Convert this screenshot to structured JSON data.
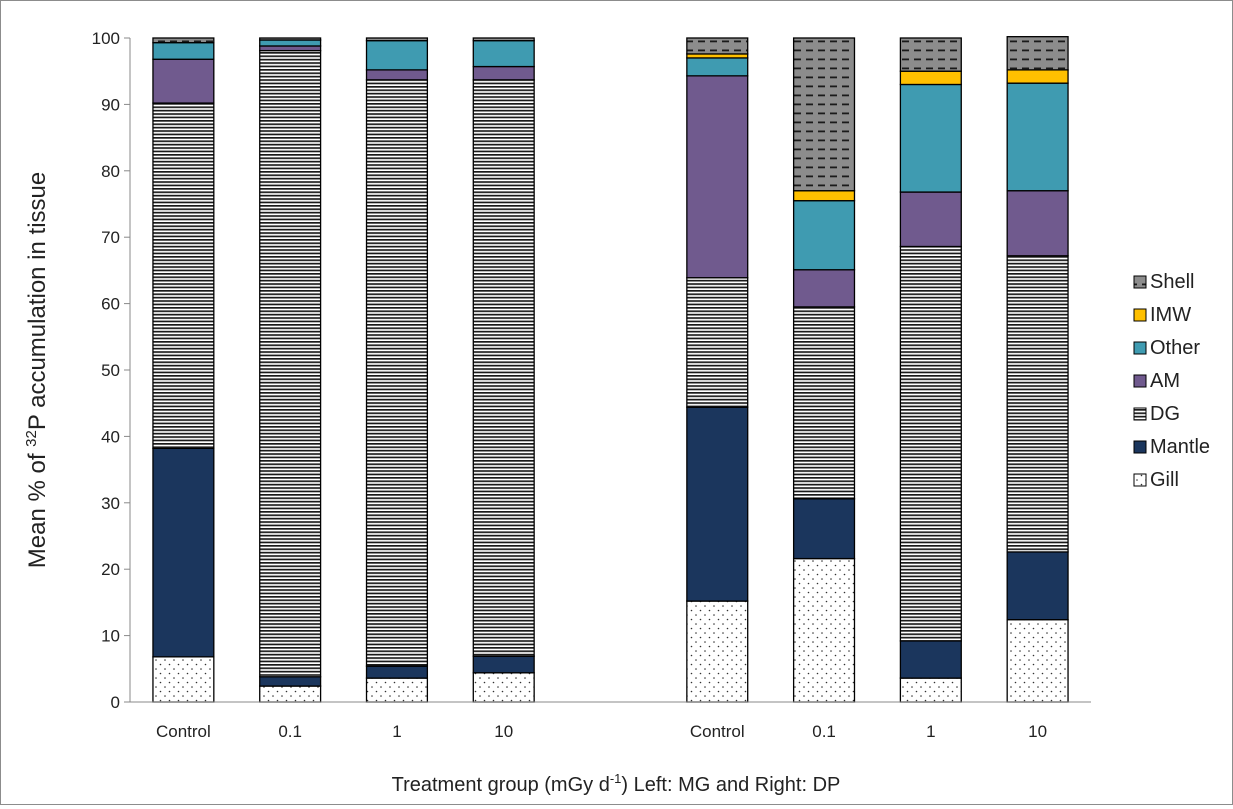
{
  "chart_data": {
    "type": "bar",
    "stacked": true,
    "xlabel_prefix": "Treatment group (mGy d",
    "xlabel_sup": "-1",
    "xlabel_suffix": ") Left: MG and Right: DP",
    "ylabel_prefix": "Mean % of ",
    "ylabel_sup": "32",
    "ylabel_suffix": "P accumulation in tissue",
    "ylim": [
      0,
      100
    ],
    "yticks": [
      0,
      10,
      20,
      30,
      40,
      50,
      60,
      70,
      80,
      90,
      100
    ],
    "grid": false,
    "legend_position": "right",
    "groups": [
      {
        "categories": [
          "Control",
          "0.1",
          "1",
          "10"
        ],
        "series": [
          {
            "name": "Gill",
            "values": [
              6.8,
              2.4,
              3.6,
              4.4
            ]
          },
          {
            "name": "Mantle",
            "values": [
              31.4,
              1.4,
              1.8,
              2.5
            ]
          },
          {
            "name": "DG",
            "values": [
              52.0,
              94.3,
              88.3,
              86.8
            ]
          },
          {
            "name": "AM",
            "values": [
              6.6,
              0.7,
              1.5,
              2.0
            ]
          },
          {
            "name": "Other",
            "values": [
              2.5,
              0.9,
              4.4,
              3.9
            ]
          },
          {
            "name": "IMW",
            "values": [
              0.0,
              0.0,
              0.0,
              0.0
            ]
          },
          {
            "name": "Shell",
            "values": [
              0.7,
              0.3,
              0.4,
              0.4
            ]
          }
        ]
      },
      {
        "categories": [
          "Control",
          "0.1",
          "1",
          "10"
        ],
        "series": [
          {
            "name": "Gill",
            "values": [
              15.2,
              21.6,
              3.6,
              12.4
            ]
          },
          {
            "name": "Mantle",
            "values": [
              29.2,
              9.0,
              5.6,
              10.2
            ]
          },
          {
            "name": "DG",
            "values": [
              19.5,
              28.9,
              59.4,
              44.6
            ]
          },
          {
            "name": "AM",
            "values": [
              30.4,
              5.6,
              8.2,
              9.8
            ]
          },
          {
            "name": "Other",
            "values": [
              2.7,
              10.4,
              16.2,
              16.2
            ]
          },
          {
            "name": "IMW",
            "values": [
              0.6,
              1.5,
              2.0,
              2.0
            ]
          },
          {
            "name": "Shell",
            "values": [
              2.4,
              23.0,
              5.0,
              5.0
            ]
          }
        ]
      }
    ],
    "legend": [
      "Shell",
      "IMW",
      "Other",
      "AM",
      "DG",
      "Mantle",
      "Gill"
    ],
    "colors": {
      "Gill": "#ffffff",
      "Mantle": "#1b365d",
      "DG": "#ffffff",
      "AM": "#705a8e",
      "Other": "#3f9bb1",
      "IMW": "#ffc000",
      "Shell": "#8c8c8c"
    }
  }
}
